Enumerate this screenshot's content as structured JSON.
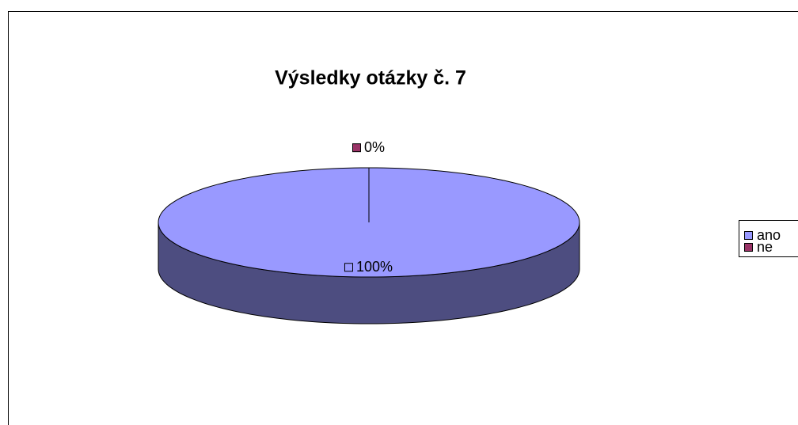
{
  "chart_data": {
    "type": "pie",
    "title": "Výsledky otázky č. 7",
    "categories": [
      "ano",
      "ne"
    ],
    "values": [
      100,
      0
    ],
    "value_labels": [
      "100%",
      "0%"
    ],
    "colors": [
      "#9999ff",
      "#993366"
    ],
    "legend": "right"
  }
}
